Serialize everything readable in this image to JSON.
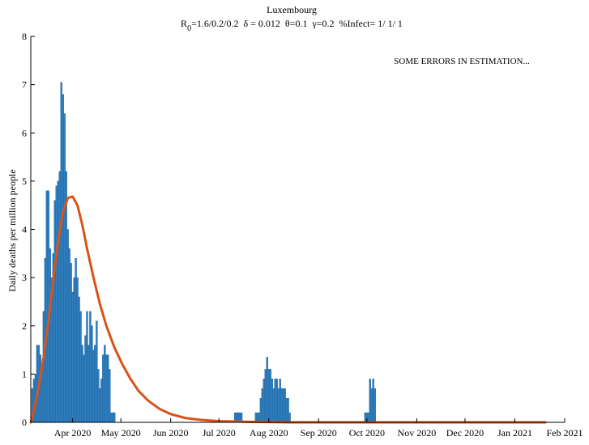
{
  "chart_data": {
    "type": "bar",
    "title": "Luxembourg",
    "subtitle": {
      "r0_prefix": "R",
      "r0_sub": "0",
      "r0_values": "=1.6/0.2/0.2",
      "delta": "δ = 0.012",
      "theta": "θ=0.1",
      "gamma": "γ=0.2",
      "infect": "%Infect= 1/ 1/ 1"
    },
    "annotation": "SOME ERRORS IN ESTIMATION...",
    "ylabel": "Daily deaths per million people",
    "xlabel": "",
    "ylim": [
      0,
      8
    ],
    "yticks": [
      0,
      1,
      2,
      3,
      4,
      5,
      6,
      7,
      8
    ],
    "xlim": [
      "2020-03-06",
      "2021-02-01"
    ],
    "xticks": [
      {
        "date": "2020-04-01",
        "label": "Apr 2020"
      },
      {
        "date": "2020-05-01",
        "label": "May 2020"
      },
      {
        "date": "2020-06-01",
        "label": "Jun 2020"
      },
      {
        "date": "2020-07-01",
        "label": "Jul 2020"
      },
      {
        "date": "2020-08-01",
        "label": "Aug 2020"
      },
      {
        "date": "2020-09-01",
        "label": "Sep 2020"
      },
      {
        "date": "2020-10-01",
        "label": "Oct 2020"
      },
      {
        "date": "2020-11-01",
        "label": "Nov 2020"
      },
      {
        "date": "2020-12-01",
        "label": "Dec 2020"
      },
      {
        "date": "2021-01-01",
        "label": "Jan 2021"
      },
      {
        "date": "2021-02-01",
        "label": "Feb 2021"
      }
    ],
    "grid": false,
    "colors": {
      "bars": "#2f7fc0",
      "model": "#d95319"
    },
    "series": [
      {
        "kind": "bar",
        "start": "2020-03-07",
        "values": [
          0.7,
          0.9,
          1.0,
          1.6,
          1.6,
          1.4,
          1.1,
          2.3,
          3.4,
          4.8,
          4.8,
          3.6,
          3.0,
          3.5,
          4.6,
          4.9,
          5.0,
          5.2,
          7.05,
          6.8,
          6.4,
          5.2,
          4.0,
          3.6,
          3.3,
          2.7,
          3.0,
          3.4,
          3.0,
          2.6,
          2.3,
          1.6,
          1.4,
          1.8,
          2.3,
          1.6,
          2.3,
          2.0,
          1.5,
          1.6,
          2.1,
          1.1,
          0.7,
          0.9,
          1.4,
          1.6,
          1.4,
          1.4,
          1.1,
          0.2,
          0.2,
          0.2
        ],
        "extra": [
          {
            "date": "2020-07-11",
            "value": 0.2
          },
          {
            "date": "2020-07-12",
            "value": 0.2
          },
          {
            "date": "2020-07-13",
            "value": 0.2
          },
          {
            "date": "2020-07-14",
            "value": 0.2
          },
          {
            "date": "2020-07-15",
            "value": 0.2
          },
          {
            "date": "2020-07-24",
            "value": 0.2
          },
          {
            "date": "2020-07-25",
            "value": 0.2
          },
          {
            "date": "2020-07-26",
            "value": 0.2
          },
          {
            "date": "2020-07-27",
            "value": 0.5
          },
          {
            "date": "2020-07-28",
            "value": 0.7
          },
          {
            "date": "2020-07-29",
            "value": 0.9
          },
          {
            "date": "2020-07-30",
            "value": 1.1
          },
          {
            "date": "2020-07-31",
            "value": 1.35
          },
          {
            "date": "2020-08-01",
            "value": 1.1
          },
          {
            "date": "2020-08-02",
            "value": 1.1
          },
          {
            "date": "2020-08-03",
            "value": 0.9
          },
          {
            "date": "2020-08-04",
            "value": 0.7
          },
          {
            "date": "2020-08-05",
            "value": 0.9
          },
          {
            "date": "2020-08-06",
            "value": 0.9
          },
          {
            "date": "2020-08-07",
            "value": 0.7
          },
          {
            "date": "2020-08-08",
            "value": 0.9
          },
          {
            "date": "2020-08-09",
            "value": 0.7
          },
          {
            "date": "2020-08-10",
            "value": 0.7
          },
          {
            "date": "2020-08-11",
            "value": 0.7
          },
          {
            "date": "2020-08-12",
            "value": 0.5
          },
          {
            "date": "2020-08-13",
            "value": 0.5
          },
          {
            "date": "2020-08-14",
            "value": 0.2
          },
          {
            "date": "2020-09-30",
            "value": 0.2
          },
          {
            "date": "2020-10-01",
            "value": 0.2
          },
          {
            "date": "2020-10-02",
            "value": 0.2
          },
          {
            "date": "2020-10-03",
            "value": 0.9
          },
          {
            "date": "2020-10-04",
            "value": 0.7
          },
          {
            "date": "2020-10-05",
            "value": 0.9
          },
          {
            "date": "2020-10-06",
            "value": 0.7
          }
        ]
      },
      {
        "kind": "line",
        "points": [
          {
            "date": "2020-03-06",
            "value": 0.0
          },
          {
            "date": "2020-03-08",
            "value": 0.25
          },
          {
            "date": "2020-03-11",
            "value": 0.75
          },
          {
            "date": "2020-03-14",
            "value": 1.35
          },
          {
            "date": "2020-03-17",
            "value": 2.1
          },
          {
            "date": "2020-03-20",
            "value": 2.95
          },
          {
            "date": "2020-03-23",
            "value": 3.75
          },
          {
            "date": "2020-03-26",
            "value": 4.35
          },
          {
            "date": "2020-03-29",
            "value": 4.65
          },
          {
            "date": "2020-04-01",
            "value": 4.68
          },
          {
            "date": "2020-04-04",
            "value": 4.5
          },
          {
            "date": "2020-04-07",
            "value": 4.1
          },
          {
            "date": "2020-04-10",
            "value": 3.6
          },
          {
            "date": "2020-04-14",
            "value": 3.0
          },
          {
            "date": "2020-04-18",
            "value": 2.45
          },
          {
            "date": "2020-04-22",
            "value": 2.0
          },
          {
            "date": "2020-04-27",
            "value": 1.55
          },
          {
            "date": "2020-05-02",
            "value": 1.2
          },
          {
            "date": "2020-05-07",
            "value": 0.9
          },
          {
            "date": "2020-05-12",
            "value": 0.65
          },
          {
            "date": "2020-05-18",
            "value": 0.45
          },
          {
            "date": "2020-05-25",
            "value": 0.28
          },
          {
            "date": "2020-06-01",
            "value": 0.17
          },
          {
            "date": "2020-06-10",
            "value": 0.09
          },
          {
            "date": "2020-06-20",
            "value": 0.05
          },
          {
            "date": "2020-07-01",
            "value": 0.025
          },
          {
            "date": "2020-07-20",
            "value": 0.01
          },
          {
            "date": "2020-08-15",
            "value": 0.0
          },
          {
            "date": "2021-01-20",
            "value": 0.0
          }
        ]
      }
    ]
  }
}
